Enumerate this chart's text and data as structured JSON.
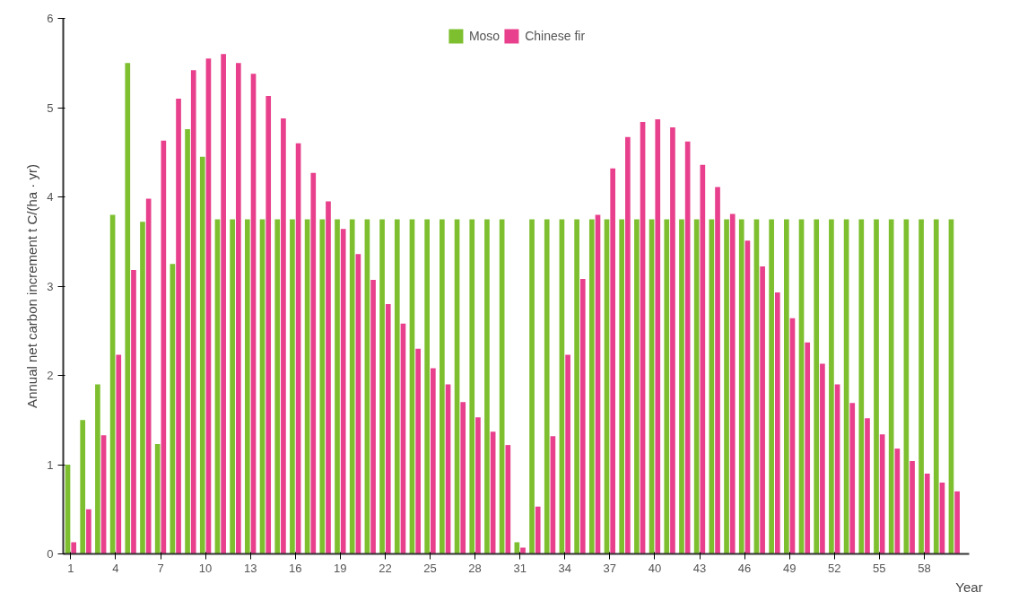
{
  "chart_data": {
    "type": "bar",
    "xlabel": "Year",
    "ylabel": "Annual net carbon increment t C/(ha · yr)",
    "x": [
      1,
      2,
      3,
      4,
      5,
      6,
      7,
      8,
      9,
      10,
      11,
      12,
      13,
      14,
      15,
      16,
      17,
      18,
      19,
      20,
      21,
      22,
      23,
      24,
      25,
      26,
      27,
      28,
      29,
      30,
      31,
      32,
      33,
      34,
      35,
      36,
      37,
      38,
      39,
      40,
      41,
      42,
      43,
      44,
      45,
      46,
      47,
      48,
      49,
      50,
      51,
      52,
      53,
      54,
      55,
      56,
      57,
      58,
      59,
      60
    ],
    "series": [
      {
        "name": "Moso",
        "color": "#7dbf2e",
        "values": [
          1.0,
          1.5,
          1.9,
          3.8,
          5.5,
          3.72,
          1.23,
          3.25,
          4.76,
          4.45,
          3.75,
          3.75,
          3.75,
          3.75,
          3.75,
          3.75,
          3.75,
          3.75,
          3.75,
          3.75,
          3.75,
          3.75,
          3.75,
          3.75,
          3.75,
          3.75,
          3.75,
          3.75,
          3.75,
          3.75,
          0.13,
          3.75,
          3.75,
          3.75,
          3.75,
          3.75,
          3.75,
          3.75,
          3.75,
          3.75,
          3.75,
          3.75,
          3.75,
          3.75,
          3.75,
          3.75,
          3.75,
          3.75,
          3.75,
          3.75,
          3.75,
          3.75,
          3.75,
          3.75,
          3.75,
          3.75,
          3.75,
          3.75,
          3.75,
          3.75
        ]
      },
      {
        "name": "Chinese fir",
        "color": "#e8408c",
        "values": [
          0.13,
          0.5,
          1.33,
          2.23,
          3.18,
          3.98,
          4.63,
          5.1,
          5.42,
          5.55,
          5.6,
          5.5,
          5.38,
          5.13,
          4.88,
          4.6,
          4.27,
          3.95,
          3.64,
          3.36,
          3.07,
          2.8,
          2.58,
          2.3,
          2.08,
          1.9,
          1.7,
          1.53,
          1.37,
          1.22,
          0.07,
          0.53,
          1.32,
          2.23,
          3.08,
          3.8,
          4.32,
          4.67,
          4.84,
          4.87,
          4.78,
          4.62,
          4.36,
          4.11,
          3.81,
          3.51,
          3.22,
          2.93,
          2.64,
          2.37,
          2.13,
          1.9,
          1.69,
          1.52,
          1.34,
          1.18,
          1.04,
          0.9,
          0.8,
          0.7
        ]
      }
    ],
    "xlim": [
      0.5,
      61
    ],
    "xticks": [
      1,
      4,
      7,
      10,
      13,
      16,
      19,
      22,
      25,
      28,
      31,
      34,
      37,
      40,
      43,
      46,
      49,
      52,
      55,
      58
    ],
    "ylim": [
      0,
      6
    ],
    "yticks": [
      0,
      1,
      2,
      3,
      4,
      5,
      6
    ],
    "grid": false,
    "legend": "top"
  }
}
